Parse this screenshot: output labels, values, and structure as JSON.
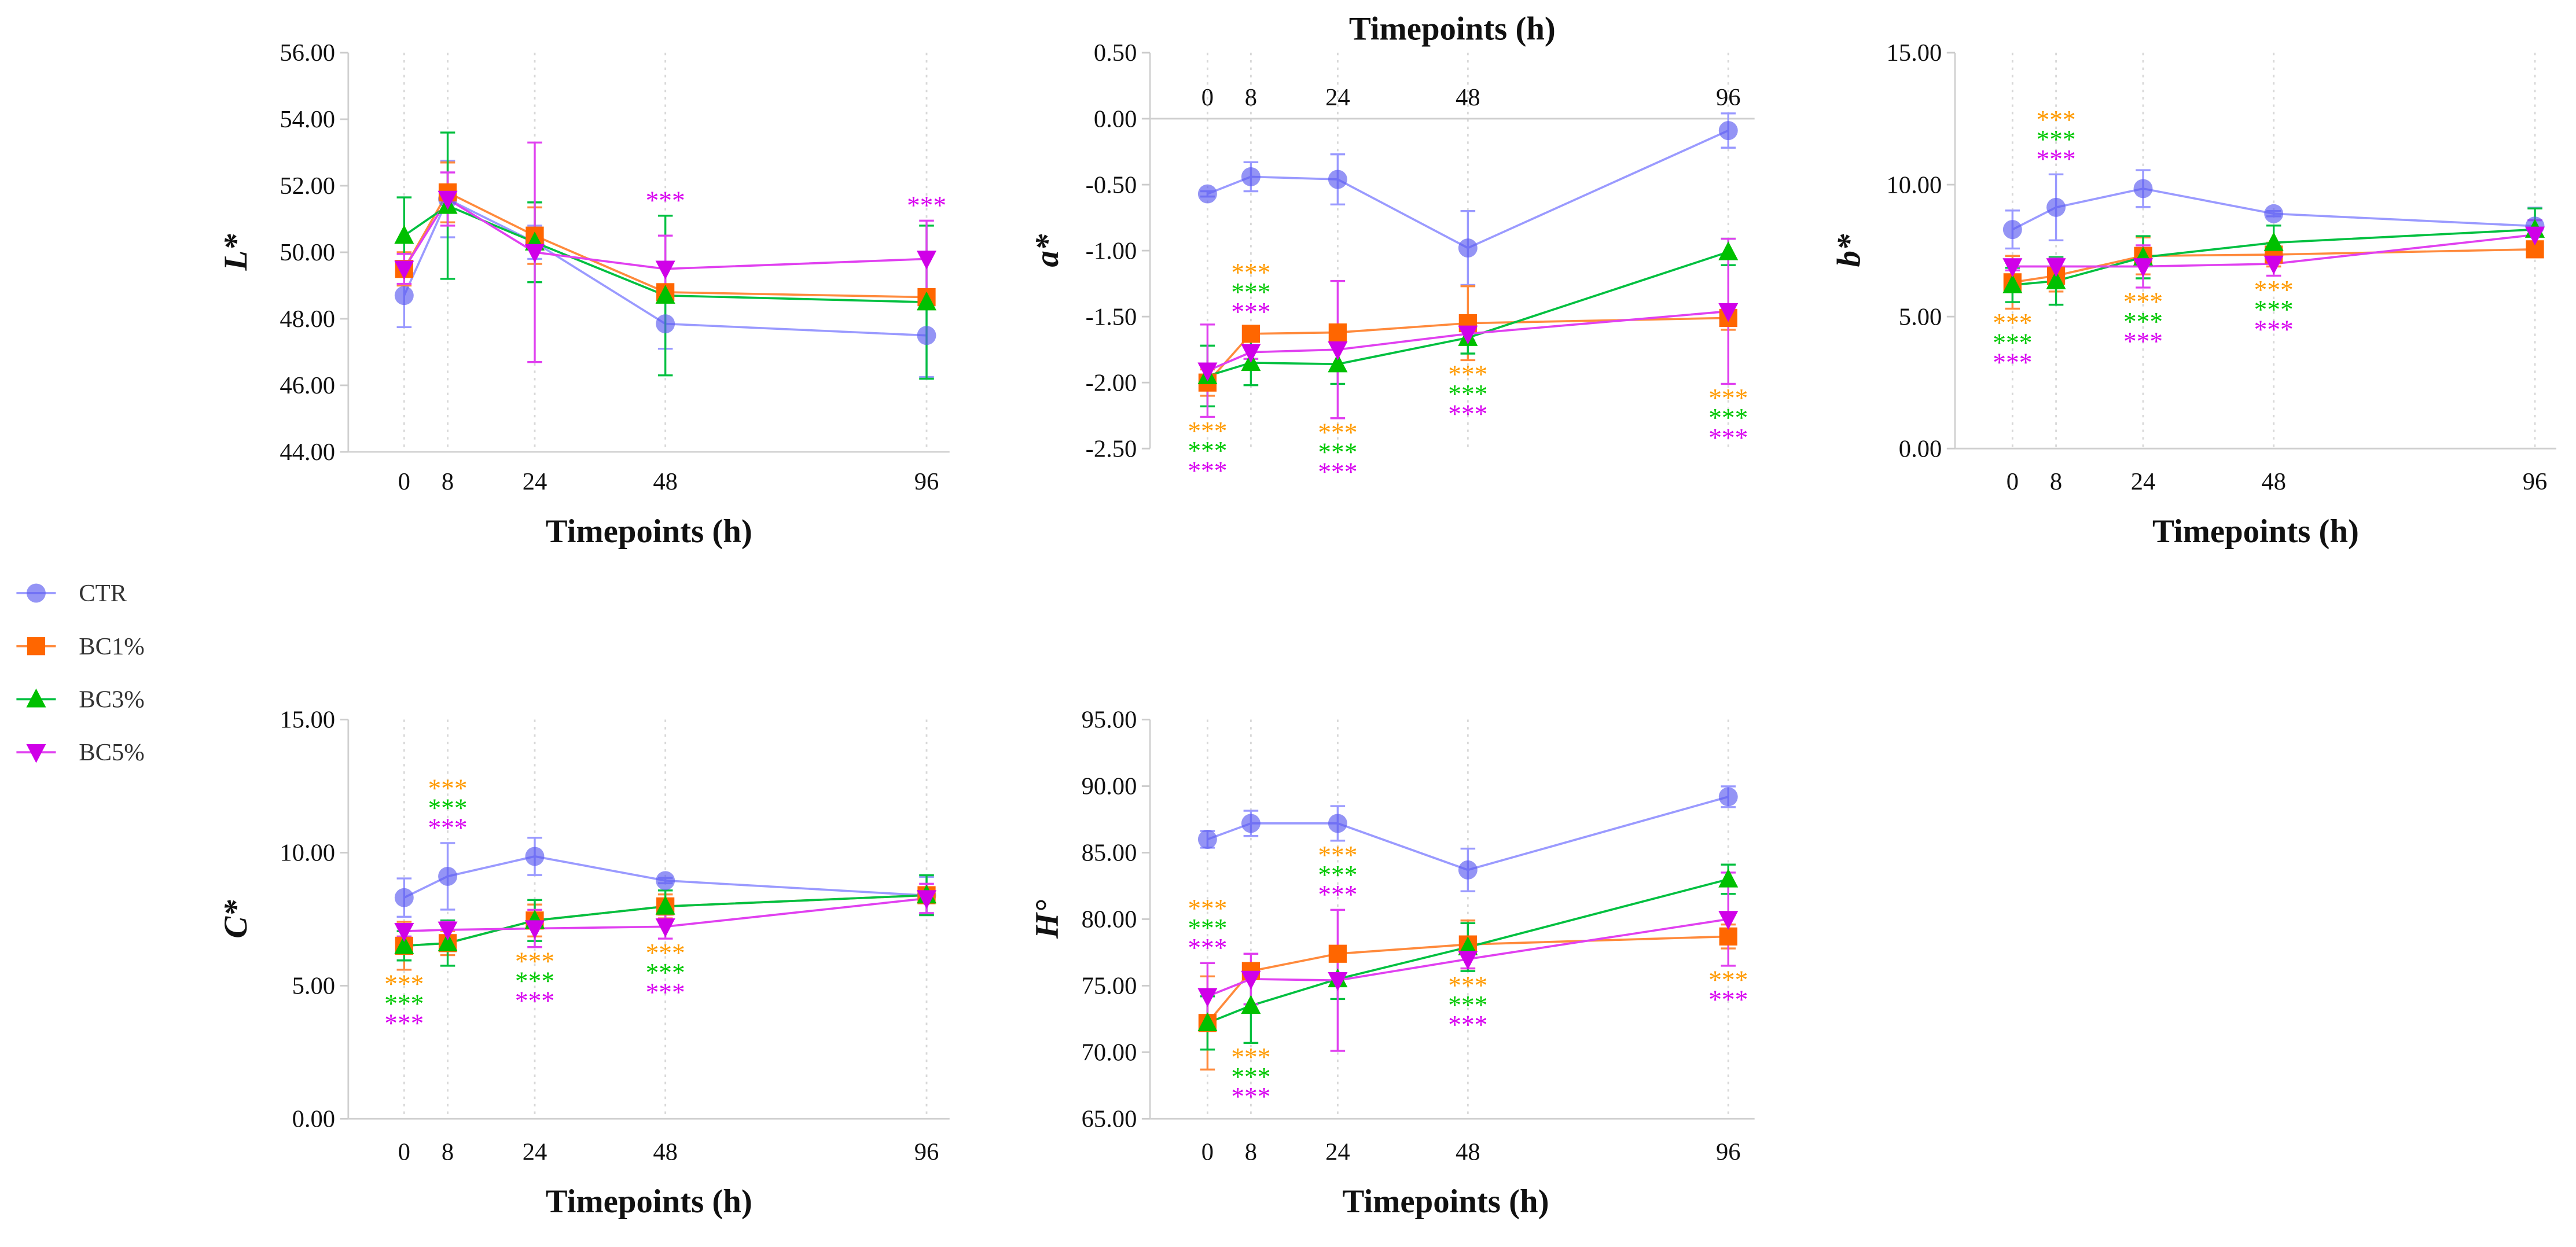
{
  "legend": {
    "placement": "left",
    "entries": [
      {
        "name": "CTR",
        "marker": "circle",
        "color": "#5a5af0",
        "line_color": "#9a9aff"
      },
      {
        "name": "BC1%",
        "marker": "square",
        "color": "#ff6600",
        "line_color": "#ff8a3c"
      },
      {
        "name": "BC3%",
        "marker": "triangle-up",
        "color": "#00c000",
        "line_color": "#00c040"
      },
      {
        "name": "BC5%",
        "marker": "triangle-down",
        "color": "#d000e8",
        "line_color": "#e040f0"
      }
    ]
  },
  "significance_colors": {
    "BC1%": "#ff9a00",
    "BC3%": "#00c800",
    "BC5%": "#d800f0"
  },
  "chart_data": [
    {
      "type": "line",
      "xlabel": "Timepoints (h)",
      "ylabel": "L*",
      "x": [
        0,
        8,
        24,
        48,
        96
      ],
      "x_tick_labels": [
        "0",
        "8",
        "24",
        "48",
        "96"
      ],
      "ylim": [
        44,
        56
      ],
      "yticks": [
        44,
        46,
        48,
        50,
        52,
        54,
        56
      ],
      "ytick_labels": [
        "44.00",
        "46.00",
        "48.00",
        "50.00",
        "52.00",
        "54.00",
        "56.00"
      ],
      "xaxis_position": "bottom",
      "grid": "vertical-dotted",
      "series": [
        {
          "name": "CTR",
          "values": [
            48.7,
            51.6,
            50.3,
            47.85,
            47.5
          ],
          "errors": [
            0.95,
            1.15,
            0.5,
            0.75,
            1.25
          ]
        },
        {
          "name": "BC1%",
          "values": [
            49.5,
            51.8,
            50.5,
            48.8,
            48.65
          ],
          "errors": [
            0.5,
            0.9,
            0.85,
            0.2,
            0.15
          ]
        },
        {
          "name": "BC3%",
          "values": [
            50.5,
            51.4,
            50.3,
            48.7,
            48.5
          ],
          "errors": [
            1.15,
            2.2,
            1.2,
            2.4,
            2.3
          ]
        },
        {
          "name": "BC5%",
          "values": [
            49.5,
            51.6,
            50.0,
            49.5,
            49.8
          ],
          "errors": [
            0.45,
            0.8,
            3.3,
            1.0,
            1.15
          ]
        }
      ],
      "significance": [
        {
          "x": 48,
          "position": "above",
          "series": [
            "BC5%"
          ],
          "label": "***"
        },
        {
          "x": 96,
          "position": "above",
          "series": [
            "BC5%"
          ],
          "label": "***"
        }
      ]
    },
    {
      "type": "line",
      "xlabel": "Timepoints (h)",
      "ylabel": "a*",
      "x": [
        0,
        8,
        24,
        48,
        96
      ],
      "x_tick_labels": [
        "0",
        "8",
        "24",
        "48",
        "96"
      ],
      "ylim": [
        -2.5,
        0.5
      ],
      "yticks": [
        -2.5,
        -2,
        -1.5,
        -1,
        -0.5,
        0,
        0.5
      ],
      "ytick_labels": [
        "-2.50",
        "-2.00",
        "-1.50",
        "-1.00",
        "-0.50",
        "0.00",
        "0.50"
      ],
      "xaxis_position": "top",
      "grid": "vertical-dotted",
      "series": [
        {
          "name": "CTR",
          "values": [
            -0.57,
            -0.44,
            -0.46,
            -0.98,
            -0.09
          ],
          "errors": [
            0.02,
            0.11,
            0.19,
            0.28,
            0.13
          ]
        },
        {
          "name": "BC1%",
          "values": [
            -2.0,
            -1.63,
            -1.62,
            -1.55,
            -1.51
          ],
          "errors": [
            0.1,
            0.05,
            0.05,
            0.28,
            0.09
          ]
        },
        {
          "name": "BC3%",
          "values": [
            -1.95,
            -1.85,
            -1.86,
            -1.66,
            -1.01
          ],
          "errors": [
            0.23,
            0.17,
            0.15,
            0.12,
            0.1
          ]
        },
        {
          "name": "BC5%",
          "values": [
            -1.91,
            -1.77,
            -1.75,
            -1.63,
            -1.46
          ],
          "errors": [
            0.35,
            0.05,
            0.52,
            0.05,
            0.55
          ]
        }
      ],
      "significance": [
        {
          "x": 0,
          "position": "below",
          "series": [
            "BC1%",
            "BC3%",
            "BC5%"
          ],
          "label": "***"
        },
        {
          "x": 8,
          "position": "above",
          "series": [
            "BC1%",
            "BC3%",
            "BC5%"
          ],
          "label": "***"
        },
        {
          "x": 24,
          "position": "below",
          "series": [
            "BC1%",
            "BC3%",
            "BC5%"
          ],
          "label": "***"
        },
        {
          "x": 48,
          "position": "below",
          "series": [
            "BC1%",
            "BC3%",
            "BC5%"
          ],
          "label": "***"
        },
        {
          "x": 96,
          "position": "below",
          "series": [
            "BC1%",
            "BC3%",
            "BC5%"
          ],
          "label": "***"
        }
      ]
    },
    {
      "type": "line",
      "xlabel": "Timepoints (h)",
      "ylabel": "b*",
      "x": [
        0,
        8,
        24,
        48,
        96
      ],
      "x_tick_labels": [
        "0",
        "8",
        "24",
        "48",
        "96"
      ],
      "ylim": [
        0,
        15
      ],
      "yticks": [
        0,
        5,
        10,
        15
      ],
      "ytick_labels": [
        "0.00",
        "5.00",
        "10.00",
        "15.00"
      ],
      "xaxis_position": "bottom",
      "grid": "vertical-dotted",
      "series": [
        {
          "name": "CTR",
          "values": [
            8.3,
            9.14,
            9.85,
            8.9,
            8.43
          ],
          "errors": [
            0.72,
            1.25,
            0.7,
            0.1,
            0.7
          ]
        },
        {
          "name": "BC1%",
          "values": [
            6.3,
            6.55,
            7.3,
            7.35,
            7.55
          ],
          "errors": [
            1.0,
            0.6,
            0.7,
            0.45,
            0.1
          ]
        },
        {
          "name": "BC3%",
          "values": [
            6.2,
            6.35,
            7.25,
            7.8,
            8.3
          ],
          "errors": [
            0.65,
            0.9,
            0.8,
            0.65,
            0.8
          ]
        },
        {
          "name": "BC5%",
          "values": [
            6.9,
            6.9,
            6.9,
            7.0,
            8.1
          ],
          "errors": [
            0.15,
            0.3,
            0.8,
            0.45,
            0.55
          ]
        }
      ],
      "significance": [
        {
          "x": 0,
          "position": "below",
          "series": [
            "BC1%",
            "BC3%",
            "BC5%"
          ],
          "label": "***"
        },
        {
          "x": 8,
          "position": "above",
          "series": [
            "BC1%",
            "BC3%",
            "BC5%"
          ],
          "label": "***"
        },
        {
          "x": 24,
          "position": "below",
          "series": [
            "BC1%",
            "BC3%",
            "BC5%"
          ],
          "label": "***"
        },
        {
          "x": 48,
          "position": "below",
          "series": [
            "BC1%",
            "BC3%",
            "BC5%"
          ],
          "label": "***"
        }
      ]
    },
    {
      "type": "line",
      "xlabel": "Timepoints (h)",
      "ylabel": "C*",
      "x": [
        0,
        8,
        24,
        48,
        96
      ],
      "x_tick_labels": [
        "0",
        "8",
        "24",
        "48",
        "96"
      ],
      "ylim": [
        0,
        15
      ],
      "yticks": [
        0,
        5,
        10,
        15
      ],
      "ytick_labels": [
        "0.00",
        "5.00",
        "10.00",
        "15.00"
      ],
      "xaxis_position": "bottom",
      "grid": "vertical-dotted",
      "series": [
        {
          "name": "CTR",
          "values": [
            8.31,
            9.11,
            9.86,
            8.95,
            8.39
          ],
          "errors": [
            0.72,
            1.25,
            0.7,
            0.1,
            0.7
          ]
        },
        {
          "name": "BC1%",
          "values": [
            6.5,
            6.6,
            7.45,
            7.98,
            8.4
          ],
          "errors": [
            0.9,
            0.45,
            0.6,
            0.45,
            0.1
          ]
        },
        {
          "name": "BC3%",
          "values": [
            6.5,
            6.6,
            7.45,
            7.98,
            8.4
          ],
          "errors": [
            0.55,
            0.85,
            0.77,
            0.6,
            0.75
          ]
        },
        {
          "name": "BC5%",
          "values": [
            7.05,
            7.1,
            7.15,
            7.22,
            8.28
          ],
          "errors": [
            0.2,
            0.3,
            0.7,
            0.45,
            0.55
          ]
        }
      ],
      "significance": [
        {
          "x": 0,
          "position": "below",
          "series": [
            "BC1%",
            "BC3%",
            "BC5%"
          ],
          "label": "***"
        },
        {
          "x": 8,
          "position": "above",
          "series": [
            "BC1%",
            "BC3%",
            "BC5%"
          ],
          "label": "***"
        },
        {
          "x": 24,
          "position": "below",
          "series": [
            "BC1%",
            "BC3%",
            "BC5%"
          ],
          "label": "***"
        },
        {
          "x": 48,
          "position": "below",
          "series": [
            "BC1%",
            "BC3%",
            "BC5%"
          ],
          "label": "***"
        }
      ]
    },
    {
      "type": "line",
      "xlabel": "Timepoints (h)",
      "ylabel": "H°",
      "x": [
        0,
        8,
        24,
        48,
        96
      ],
      "x_tick_labels": [
        "0",
        "8",
        "24",
        "48",
        "96"
      ],
      "ylim": [
        65,
        95
      ],
      "yticks": [
        65,
        70,
        75,
        80,
        85,
        90,
        95
      ],
      "ytick_labels": [
        "65.00",
        "70.00",
        "75.00",
        "80.00",
        "85.00",
        "90.00",
        "95.00"
      ],
      "xaxis_position": "bottom",
      "grid": "vertical-dotted",
      "series": [
        {
          "name": "CTR",
          "values": [
            86.0,
            87.2,
            87.2,
            83.7,
            89.2
          ],
          "errors": [
            0.63,
            0.95,
            1.3,
            1.6,
            0.78
          ]
        },
        {
          "name": "BC1%",
          "values": [
            72.2,
            76.1,
            77.4,
            78.1,
            78.7
          ],
          "errors": [
            3.5,
            0.5,
            0.5,
            1.8,
            0.9
          ]
        },
        {
          "name": "BC3%",
          "values": [
            72.2,
            73.5,
            75.5,
            77.9,
            83.0
          ],
          "errors": [
            2.0,
            2.8,
            1.5,
            1.8,
            1.1
          ]
        },
        {
          "name": "BC5%",
          "values": [
            74.2,
            75.5,
            75.4,
            77.0,
            80.0
          ],
          "errors": [
            2.5,
            1.9,
            5.3,
            0.7,
            3.5
          ]
        }
      ],
      "significance": [
        {
          "x": 0,
          "position": "above",
          "series": [
            "BC1%",
            "BC3%",
            "BC5%"
          ],
          "label": "***"
        },
        {
          "x": 8,
          "position": "below",
          "series": [
            "BC1%",
            "BC3%",
            "BC5%"
          ],
          "label": "***"
        },
        {
          "x": 24,
          "position": "above",
          "series": [
            "BC1%",
            "BC3%",
            "BC5%"
          ],
          "label": "***"
        },
        {
          "x": 48,
          "position": "below",
          "series": [
            "BC1%",
            "BC3%",
            "BC5%"
          ],
          "label": "***"
        },
        {
          "x": 96,
          "position": "below",
          "series": [
            "BC1%",
            "BC5%"
          ],
          "label": "***"
        }
      ]
    }
  ]
}
